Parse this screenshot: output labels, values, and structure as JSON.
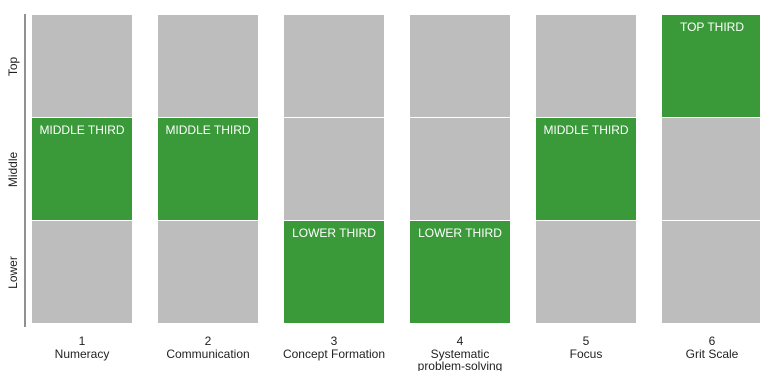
{
  "chart_data": {
    "type": "heatmap",
    "title": "",
    "bands": [
      "Top",
      "Middle",
      "Lower"
    ],
    "columns": [
      {
        "number": "1",
        "name": [
          "Numeracy"
        ],
        "level": "Middle",
        "label": "MIDDLE THIRD"
      },
      {
        "number": "2",
        "name": [
          "Communication"
        ],
        "level": "Middle",
        "label": "MIDDLE THIRD"
      },
      {
        "number": "3",
        "name": [
          "Concept Formation"
        ],
        "level": "Lower",
        "label": "LOWER THIRD"
      },
      {
        "number": "4",
        "name": [
          "Systematic",
          "problem-solving"
        ],
        "level": "Lower",
        "label": "LOWER THIRD"
      },
      {
        "number": "5",
        "name": [
          "Focus"
        ],
        "level": "Middle",
        "label": "MIDDLE THIRD"
      },
      {
        "number": "6",
        "name": [
          "Grit Scale"
        ],
        "level": "Top",
        "label": "TOP THIRD"
      }
    ],
    "colors": {
      "highlight": "#3a9a3a",
      "background": "#bdbdbd",
      "axis": "#222222"
    }
  }
}
